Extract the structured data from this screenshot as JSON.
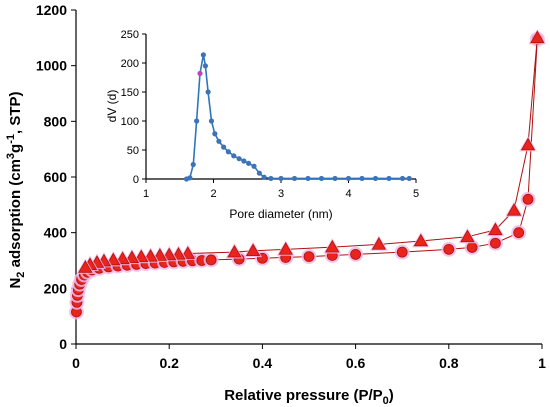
{
  "chart_data": [
    {
      "type": "scatter",
      "xlabel": "Relative pressure (P/P",
      "xlabel_sub": "0",
      "xlabel_end": ")",
      "ylabel_prefix": "N",
      "ylabel_sub": "2",
      "ylabel_mid": " adsorption (cm",
      "ylabel_sup": "3",
      "ylabel_g": "g",
      "ylabel_sup2": "-1",
      "ylabel_end": ", STP)",
      "xlim": [
        0,
        1
      ],
      "ylim": [
        0,
        1200
      ],
      "x_ticks": [
        "0",
        "0.2",
        "0.4",
        "0.6",
        "0.8",
        "1"
      ],
      "y_ticks": [
        "0",
        "200",
        "400",
        "600",
        "800",
        "1000",
        "1200"
      ],
      "grid": false,
      "colors": {
        "marker": "#e8241c",
        "marker_edge": "#b01010",
        "line": "#b01010",
        "halo": "#f2b8e6"
      },
      "series": [
        {
          "marker": "circle",
          "points": [
            [
              0.001,
              115
            ],
            [
              0.002,
              150
            ],
            [
              0.003,
              175
            ],
            [
              0.005,
              195
            ],
            [
              0.008,
              215
            ],
            [
              0.012,
              232
            ],
            [
              0.018,
              248
            ],
            [
              0.025,
              258
            ],
            [
              0.035,
              266
            ],
            [
              0.05,
              272
            ],
            [
              0.07,
              277
            ],
            [
              0.09,
              280
            ],
            [
              0.11,
              283
            ],
            [
              0.13,
              286
            ],
            [
              0.15,
              289
            ],
            [
              0.17,
              291
            ],
            [
              0.19,
              293
            ],
            [
              0.21,
              295
            ],
            [
              0.23,
              297
            ],
            [
              0.25,
              299
            ],
            [
              0.27,
              300
            ],
            [
              0.29,
              302
            ],
            [
              0.35,
              305
            ],
            [
              0.4,
              308
            ],
            [
              0.45,
              311
            ],
            [
              0.5,
              314
            ],
            [
              0.55,
              318
            ],
            [
              0.6,
              322
            ],
            [
              0.7,
              330
            ],
            [
              0.8,
              340
            ],
            [
              0.85,
              347
            ],
            [
              0.9,
              362
            ],
            [
              0.95,
              400
            ],
            [
              0.97,
              520
            ],
            [
              0.99,
              1095
            ]
          ]
        },
        {
          "marker": "triangle",
          "points": [
            [
              0.99,
              1100
            ],
            [
              0.97,
              715
            ],
            [
              0.94,
              480
            ],
            [
              0.9,
              410
            ],
            [
              0.84,
              385
            ],
            [
              0.74,
              370
            ],
            [
              0.65,
              358
            ],
            [
              0.55,
              348
            ],
            [
              0.45,
              340
            ],
            [
              0.38,
              335
            ],
            [
              0.34,
              330
            ],
            [
              0.24,
              325
            ],
            [
              0.22,
              322
            ],
            [
              0.2,
              320
            ],
            [
              0.18,
              318
            ],
            [
              0.16,
              315
            ],
            [
              0.14,
              313
            ],
            [
              0.12,
              310
            ],
            [
              0.1,
              306
            ],
            [
              0.08,
              302
            ],
            [
              0.06,
              298
            ],
            [
              0.045,
              293
            ],
            [
              0.03,
              285
            ],
            [
              0.02,
              275
            ]
          ]
        }
      ]
    },
    {
      "type": "line",
      "xlabel": "Pore diameter (nm)",
      "ylabel": "dV (d)",
      "xlim": [
        1,
        5
      ],
      "ylim": [
        0,
        250
      ],
      "x_ticks": [
        "1",
        "2",
        "3",
        "4",
        "5"
      ],
      "y_ticks": [
        "0",
        "50",
        "100",
        "150",
        "200",
        "250"
      ],
      "grid": false,
      "colors": {
        "line": "#2e75c0",
        "marker": "#3f73b8",
        "highlight": "#c040c0"
      },
      "highlight_index": 4,
      "points": [
        [
          1.6,
          0
        ],
        [
          1.65,
          2
        ],
        [
          1.7,
          25
        ],
        [
          1.75,
          100
        ],
        [
          1.8,
          182
        ],
        [
          1.85,
          214
        ],
        [
          1.88,
          195
        ],
        [
          1.92,
          150
        ],
        [
          1.97,
          100
        ],
        [
          2.02,
          78
        ],
        [
          2.08,
          65
        ],
        [
          2.15,
          55
        ],
        [
          2.22,
          47
        ],
        [
          2.3,
          40
        ],
        [
          2.38,
          35
        ],
        [
          2.45,
          31
        ],
        [
          2.52,
          27
        ],
        [
          2.6,
          22
        ],
        [
          2.68,
          10
        ],
        [
          2.75,
          3
        ],
        [
          2.85,
          1
        ],
        [
          3.0,
          1
        ],
        [
          3.2,
          1
        ],
        [
          3.4,
          1
        ],
        [
          3.6,
          1
        ],
        [
          3.8,
          1
        ],
        [
          4.0,
          1
        ],
        [
          4.2,
          1
        ],
        [
          4.4,
          1
        ],
        [
          4.6,
          1
        ],
        [
          4.8,
          1
        ],
        [
          4.9,
          1
        ]
      ]
    }
  ]
}
